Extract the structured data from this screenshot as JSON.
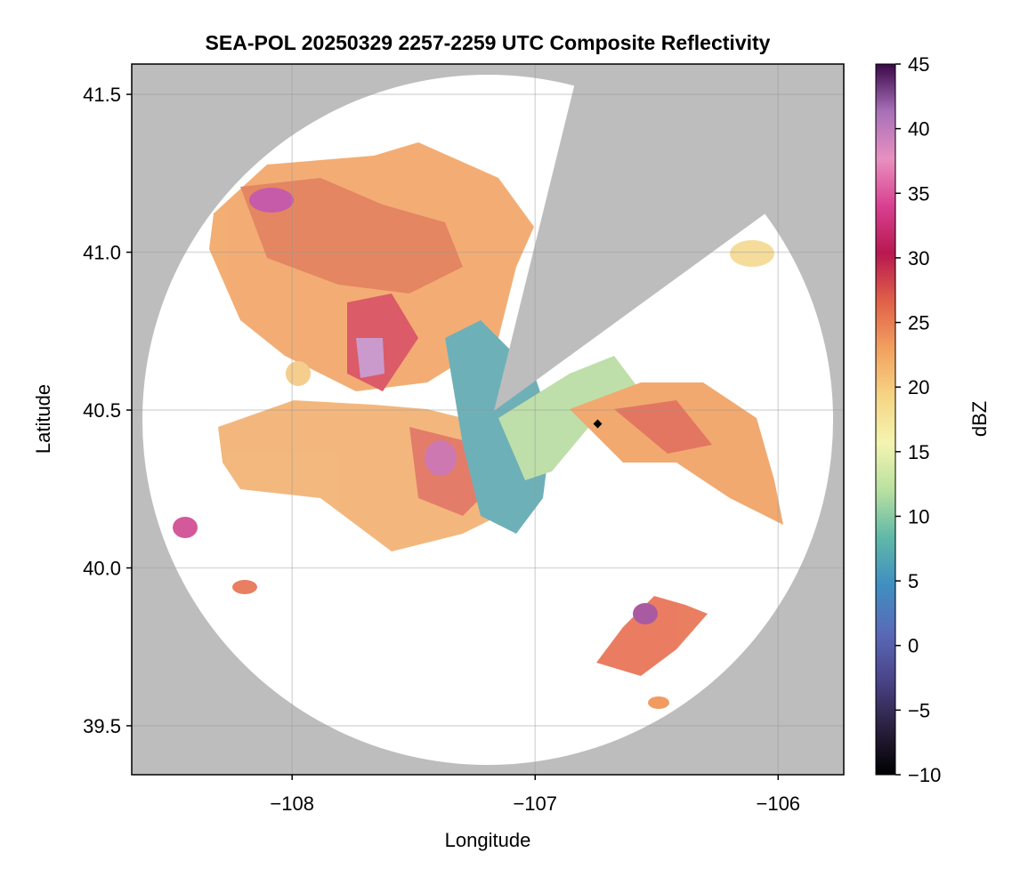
{
  "chart_data": {
    "type": "radar-map",
    "title": "SEA-POL 20250329 2257-2259 UTC Composite Reflectivity",
    "x_label": "Longitude",
    "y_label": "Latitude",
    "xlim": [
      -108.66,
      -105.73
    ],
    "ylim": [
      39.345,
      41.596
    ],
    "xticks": [
      {
        "value": -108,
        "label": "−108"
      },
      {
        "value": -107,
        "label": "−107"
      },
      {
        "value": -106,
        "label": "−106"
      }
    ],
    "yticks": [
      39.5,
      {
        "value": 40,
        "label": "40.0"
      },
      40.5,
      {
        "value": 41,
        "label": "41.0"
      },
      41.5
    ],
    "grid": true,
    "colorbar": {
      "label": "dBZ",
      "lim": [
        -10,
        45
      ],
      "ticks": [
        {
          "value": -10,
          "label": "−10"
        },
        {
          "value": -5,
          "label": "−5"
        },
        0,
        5,
        10,
        15,
        20,
        25,
        30,
        35,
        40,
        45
      ],
      "colors": [
        "#000000",
        "#2a2040",
        "#4a4488",
        "#5a6ab8",
        "#3f8fc0",
        "#5fb8a8",
        "#b8e0a0",
        "#f4f4b0",
        "#f6d484",
        "#f2a060",
        "#e06048",
        "#b81850",
        "#d84090",
        "#e890c0",
        "#a870b8",
        "#3a0848"
      ]
    }
  }
}
